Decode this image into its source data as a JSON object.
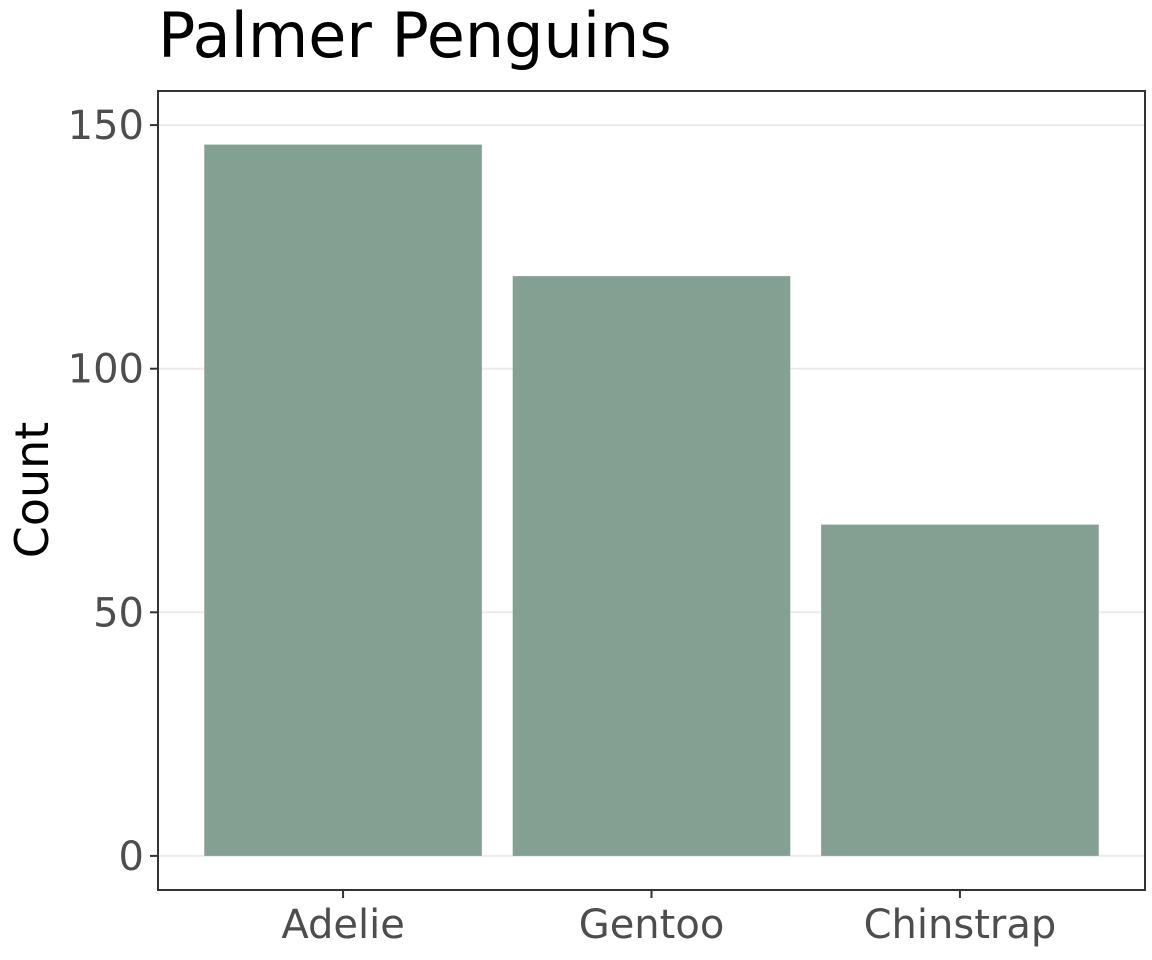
{
  "chart_data": {
    "type": "bar",
    "title": "Palmer Penguins",
    "xlabel": "",
    "ylabel": "Count",
    "categories": [
      "Adelie",
      "Gentoo",
      "Chinstrap"
    ],
    "values": [
      146,
      119,
      68
    ],
    "ylim": [
      -7,
      157
    ],
    "yticks": [
      0,
      50,
      100,
      150
    ],
    "grid": true,
    "legend": "none",
    "colors": {
      "bar": "#84a093",
      "grid": "#ebebeb",
      "border": "#333333",
      "tick_text": "#4d4d4d",
      "title_text": "#000000"
    }
  }
}
